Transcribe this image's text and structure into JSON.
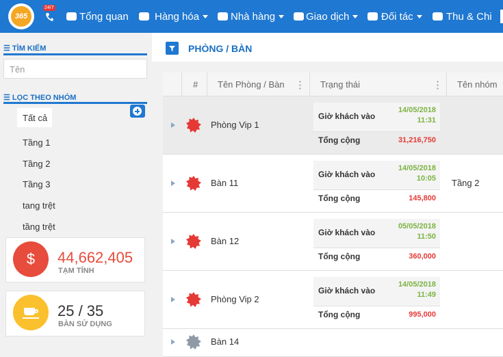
{
  "nav": {
    "logo": "365",
    "badge": "24/7",
    "items": [
      "Tổng quan",
      "Hàng hóa",
      "Nhà hàng",
      "Giao dịch",
      "Đối tác",
      "Thu & Chi"
    ]
  },
  "sidebar": {
    "search_title": "TÌM KIẾM",
    "search_placeholder": "Tên",
    "filter_title": "LỌC THEO NHÓM",
    "groups": [
      "Tất cả",
      "Tầng 1",
      "Tầng 2",
      "Tầng 3",
      "tang trệt",
      "tầng trệt"
    ],
    "stats": [
      {
        "value": "44,662,405",
        "label": "TẠM TÍNH"
      },
      {
        "value": "25 / 35",
        "label": "BÀN SỬ DỤNG"
      }
    ]
  },
  "main": {
    "title": "PHÒNG / BÀN",
    "columns": [
      "#",
      "Tên Phòng / Bàn",
      "Trạng thái",
      "Tên nhóm"
    ],
    "rows": [
      {
        "name": "Phòng Vip 1",
        "checkin_label": "Giờ khách vào",
        "date": "14/05/2018",
        "time": "11:31",
        "total_label": "Tổng cộng",
        "total": "31,216,750",
        "group": null
      },
      {
        "name": "Bàn 11",
        "checkin_label": "Giờ khách vào",
        "date": "14/05/2018",
        "time": "10:05",
        "total_label": "Tổng cộng",
        "total": "145,800",
        "group": "Tầng 2"
      },
      {
        "name": "Bàn 12",
        "checkin_label": "Giờ khách vào",
        "date": "05/05/2018",
        "time": "11:50",
        "total_label": "Tổng cộng",
        "total": "360,000",
        "group": null
      },
      {
        "name": "Phòng Vip 2",
        "checkin_label": "Giờ khách vào",
        "date": "14/05/2018",
        "time": "11:49",
        "total_label": "Tổng cộng",
        "total": "995,000",
        "group": null
      },
      {
        "name": "Bàn 14",
        "checkin_label": null,
        "date": null,
        "time": null,
        "total_label": null,
        "total": null,
        "group": null
      }
    ]
  }
}
